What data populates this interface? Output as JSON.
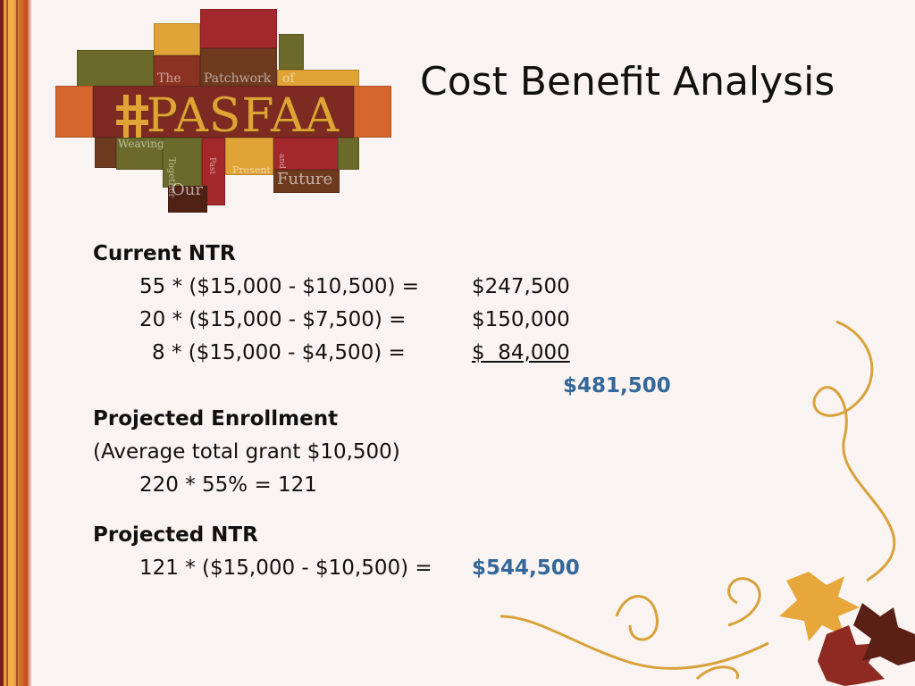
{
  "slide": {
    "title": "Cost Benefit Analysis"
  },
  "logo": {
    "name": "PASFAA",
    "words": [
      "The",
      "Patchwork",
      "of",
      "Weaving",
      "Together",
      "Our",
      "Past",
      "Present",
      "and",
      "Future"
    ]
  },
  "sections": {
    "current_ntr": {
      "heading": "Current NTR",
      "lines": [
        {
          "expr": "55 * ($15,000 - $10,500) =",
          "value": "$247,500"
        },
        {
          "expr": "20 * ($15,000 - $7,500) =",
          "value": "$150,000"
        },
        {
          "expr": "8 * ($15,000 - $4,500) =",
          "value": "$  84,000"
        }
      ],
      "total": "$481,500"
    },
    "projected_enrollment": {
      "heading": "Projected Enrollment",
      "note": "(Average total grant $10,500)",
      "calc": "220 * 55% = 121"
    },
    "projected_ntr": {
      "heading": "Projected NTR",
      "expr": "121 * ($15,000 - $10,500) =",
      "value": "$544,500"
    }
  },
  "colors": {
    "accent_blue": "#35679a",
    "patch_red": "#a3282b",
    "patch_gold": "#e0a336",
    "patch_olive": "#6b6a2a",
    "patch_brown": "#6e3a1f",
    "background": "#f9f4f1"
  }
}
